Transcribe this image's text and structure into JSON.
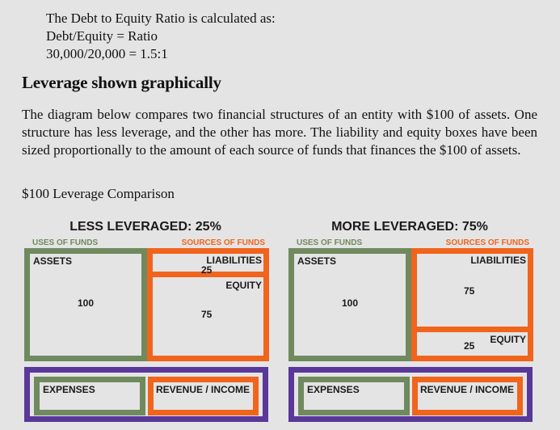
{
  "calc": {
    "line1": "The Debt to Equity Ratio is calculated as:",
    "line2": "Debt/Equity = Ratio",
    "line3": "30,000/20,000 = 1.5:1"
  },
  "heading": "Leverage shown graphically",
  "paragraph": "The diagram below compares two financial structures of an entity with $100 of assets. One structure has less leverage, and the other has more. The liability and equity boxes have been sized proportionally to the amount of each source of funds that finances the $100 of assets.",
  "caption": "$100 Leverage Comparison",
  "colors": {
    "green": "#6f8a5e",
    "orange": "#f0641c",
    "purple": "#59389a"
  },
  "left_panel": {
    "title": "LESS LEVERAGED: 25%",
    "uses_label": "USES OF FUNDS",
    "sources_label": "SOURCES OF FUNDS",
    "assets_label": "ASSETS",
    "assets_value": "100",
    "liabilities_label": "LIABILITIES",
    "liabilities_value": "25",
    "equity_label": "EQUITY",
    "equity_value": "75",
    "expenses_label": "EXPENSES",
    "revenue_label": "REVENUE / INCOME"
  },
  "right_panel": {
    "title": "MORE LEVERAGED: 75%",
    "uses_label": "USES OF FUNDS",
    "sources_label": "SOURCES OF FUNDS",
    "assets_label": "ASSETS",
    "assets_value": "100",
    "liabilities_label": "LIABILITIES",
    "liabilities_value": "75",
    "equity_label": "EQUITY",
    "equity_value": "25",
    "expenses_label": "EXPENSES",
    "revenue_label": "REVENUE / INCOME"
  }
}
